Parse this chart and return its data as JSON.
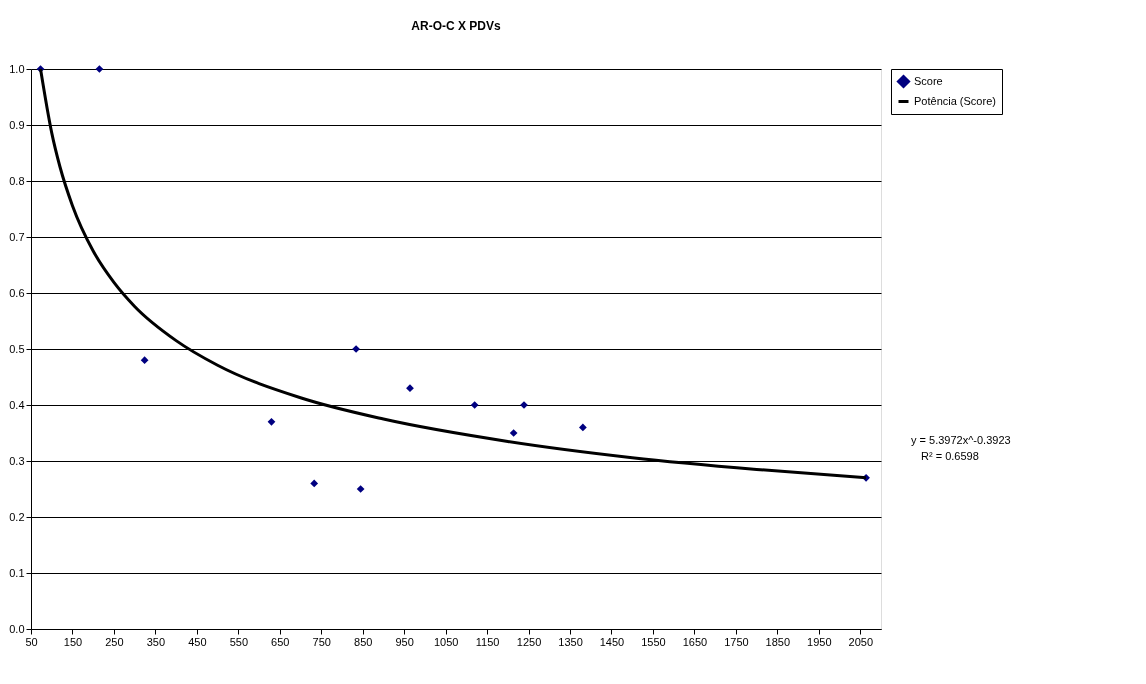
{
  "chart_data": {
    "type": "scatter",
    "title": "AR-O-C X PDVs",
    "xlim": [
      50,
      2100
    ],
    "xticks": [
      50,
      150,
      250,
      350,
      450,
      550,
      650,
      750,
      850,
      950,
      1050,
      1150,
      1250,
      1350,
      1450,
      1550,
      1650,
      1750,
      1850,
      1950,
      2050
    ],
    "ylim": [
      0,
      1
    ],
    "yticks": [
      {
        "value": 0,
        "label": "0.0"
      },
      0.1,
      0.2,
      0.3,
      0.4,
      0.5,
      0.6,
      0.7,
      0.8,
      0.9,
      {
        "value": 1,
        "label": "1.0"
      }
    ],
    "grid": "y",
    "legend": "right",
    "series": [
      {
        "name": "Score",
        "type": "scatter",
        "marker": "diamond",
        "color": "#000080",
        "x": [
          73,
          215,
          324,
          630,
          733,
          834,
          845,
          964,
          1120,
          1214,
          1239,
          1381,
          2064
        ],
        "values": [
          1.0,
          1.0,
          0.48,
          0.37,
          0.26,
          0.5,
          0.25,
          0.43,
          0.4,
          0.35,
          0.4,
          0.36,
          0.27
        ]
      },
      {
        "name": "Potência (Score)",
        "type": "line",
        "marker": "none",
        "color": "#000000",
        "line_style": "solid",
        "x": [
          73,
          100,
          120,
          150,
          200,
          250,
          300,
          400,
          500,
          700,
          900,
          1200,
          1500,
          1800,
          2064
        ],
        "values": [
          1.0,
          0.886,
          0.825,
          0.756,
          0.675,
          0.619,
          0.576,
          0.515,
          0.471,
          0.413,
          0.375,
          0.335,
          0.306,
          0.285,
          0.27
        ]
      }
    ],
    "annotations": [
      "y = 5.3972x^-0.3923",
      "R² = 0.6598"
    ]
  }
}
